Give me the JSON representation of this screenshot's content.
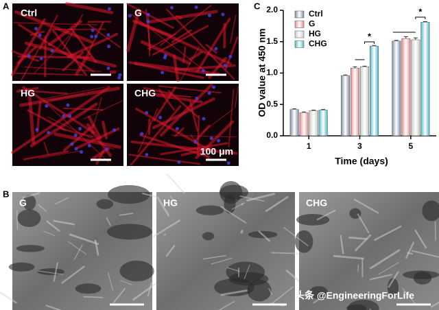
{
  "panel_labels": [
    "A",
    "B",
    "C"
  ],
  "fluorescence": {
    "labels": [
      "Ctrl",
      "G",
      "HG",
      "CHG"
    ],
    "scale_bar": "100 μm"
  },
  "sem": {
    "labels": [
      "G",
      "HG",
      "CHG"
    ]
  },
  "watermark": "头条 @EngineeringForLife",
  "chart_data": {
    "type": "bar",
    "ylabel": "OD value at 450 nm",
    "xlabel": "Time (days)",
    "categories": [
      "1",
      "3",
      "5"
    ],
    "series": [
      {
        "name": "Ctrl",
        "color": "#7d8ba0",
        "values": [
          0.42,
          0.96,
          1.51
        ],
        "errors": [
          0.01,
          0.01,
          0.01
        ]
      },
      {
        "name": "G",
        "color": "#e88a8c",
        "values": [
          0.37,
          1.08,
          1.55
        ],
        "errors": [
          0.01,
          0.02,
          0.03
        ]
      },
      {
        "name": "HG",
        "color": "#c8cbc3",
        "values": [
          0.4,
          1.1,
          1.53
        ],
        "errors": [
          0.01,
          0.01,
          0.03
        ]
      },
      {
        "name": "CHG",
        "color": "#4cb6ca",
        "values": [
          0.41,
          1.43,
          1.81
        ],
        "errors": [
          0.01,
          0.01,
          0.01
        ]
      }
    ],
    "ylim": [
      0,
      2.0
    ],
    "yticks": [
      {
        "value": 0,
        "label": "0.0"
      },
      {
        "value": 0.5,
        "label": "0.5"
      },
      {
        "value": 1.0,
        "label": "1.0"
      },
      {
        "value": 1.5,
        "label": "1.5"
      },
      {
        "value": 2.0,
        "label": "2.0"
      }
    ],
    "legend": "upper-left",
    "annotations": [
      "*",
      "*"
    ]
  }
}
